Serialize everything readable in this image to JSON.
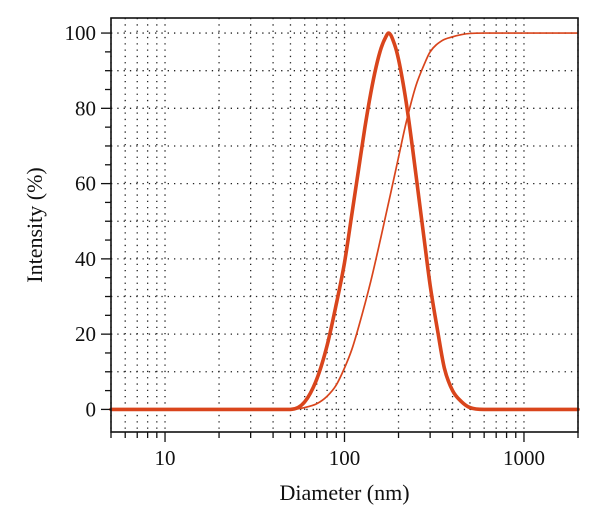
{
  "chart_data": {
    "type": "line",
    "title": "",
    "xlabel": "Diameter (nm)",
    "ylabel": "Intensity (%)",
    "x_scale": "log",
    "xlim": [
      5,
      2000
    ],
    "ylim": [
      -6,
      104
    ],
    "x_ticks": [
      {
        "value": 10,
        "label": "10"
      },
      {
        "value": 100,
        "label": "100"
      },
      {
        "value": 1000,
        "label": "1000"
      }
    ],
    "y_ticks": [
      {
        "value": 0,
        "label": "0"
      },
      {
        "value": 20,
        "label": "20"
      },
      {
        "value": 40,
        "label": "40"
      },
      {
        "value": 60,
        "label": "60"
      },
      {
        "value": 80,
        "label": "80"
      },
      {
        "value": 100,
        "label": "100"
      }
    ],
    "grid": true,
    "grid_style": "dotted",
    "colors": {
      "series": "#d9451c",
      "axis": "#111111",
      "grid": "#222222"
    },
    "series": [
      {
        "style": "thick",
        "x": [
          5,
          40,
          50,
          60,
          70,
          80,
          90,
          100,
          110,
          120,
          130,
          140,
          150,
          160,
          170,
          176,
          190,
          200,
          220,
          240,
          260,
          280,
          300,
          330,
          360,
          400,
          450,
          500,
          600,
          800,
          1000,
          2000
        ],
        "y": [
          0,
          0,
          0,
          2,
          8,
          17,
          28,
          39,
          52,
          64,
          75,
          84,
          91,
          96,
          99,
          100,
          97,
          93,
          82,
          69,
          56,
          44,
          33,
          21,
          11,
          5,
          2,
          0.5,
          0,
          0,
          0,
          0
        ]
      },
      {
        "style": "thin",
        "x": [
          5,
          50,
          60,
          70,
          80,
          90,
          100,
          110,
          120,
          140,
          160,
          180,
          200,
          220,
          250,
          280,
          300,
          350,
          400,
          450,
          500,
          600,
          1000,
          2000
        ],
        "y": [
          0,
          0,
          0.5,
          1.5,
          3.5,
          6.5,
          11,
          16,
          22,
          34,
          46,
          57,
          67,
          76,
          86,
          92,
          95,
          98,
          99,
          99.6,
          99.9,
          100,
          100,
          100
        ]
      }
    ]
  }
}
